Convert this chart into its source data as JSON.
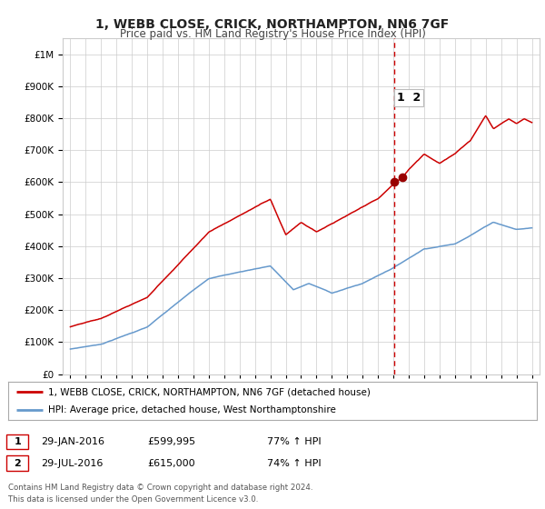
{
  "title": "1, WEBB CLOSE, CRICK, NORTHAMPTON, NN6 7GF",
  "subtitle": "Price paid vs. HM Land Registry's House Price Index (HPI)",
  "legend_label_red": "1, WEBB CLOSE, CRICK, NORTHAMPTON, NN6 7GF (detached house)",
  "legend_label_blue": "HPI: Average price, detached house, West Northamptonshire",
  "footer": "Contains HM Land Registry data © Crown copyright and database right 2024.\nThis data is licensed under the Open Government Licence v3.0.",
  "transaction1_date": "29-JAN-2016",
  "transaction1_price": "£599,995",
  "transaction1_hpi": "77% ↑ HPI",
  "transaction2_date": "29-JUL-2016",
  "transaction2_price": "£615,000",
  "transaction2_hpi": "74% ↑ HPI",
  "vline_x": 2016.08,
  "marker1_x": 2016.08,
  "marker1_y": 599995,
  "marker2_x": 2016.58,
  "marker2_y": 615000,
  "ylim": [
    0,
    1050000
  ],
  "xlim": [
    1994.5,
    2025.5
  ],
  "red_color": "#cc0000",
  "blue_color": "#6699cc",
  "marker_color": "#990000",
  "vline_color": "#cc0000",
  "background_color": "#ffffff",
  "grid_color": "#cccccc"
}
